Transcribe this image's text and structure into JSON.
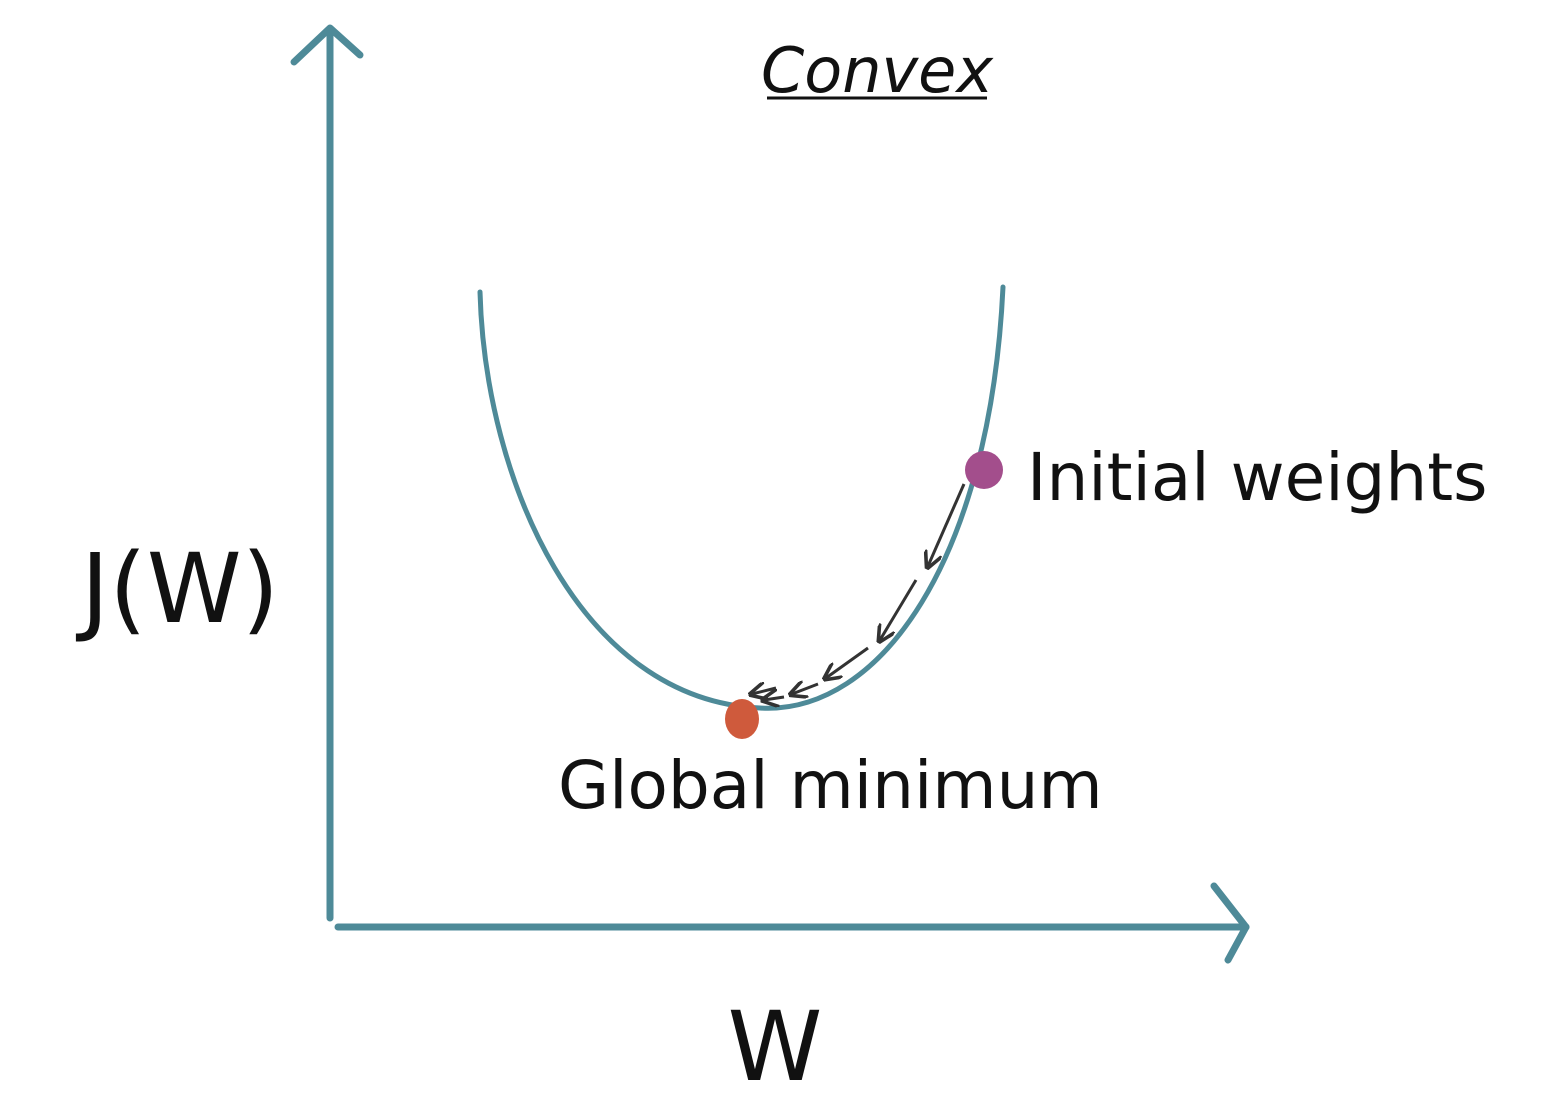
{
  "title": "Convex",
  "axes": {
    "y_label": "J(W)",
    "x_label": "W"
  },
  "annotations": {
    "start_point": "Initial weights",
    "end_point": "Global minimum"
  },
  "colors": {
    "axis": "#4e8a98",
    "curve": "#4e8a98",
    "start_point": "#a34e8c",
    "end_point": "#cf5a3c",
    "arrows": "#333333",
    "text": "#111111"
  },
  "steps": {
    "count": 6,
    "direction": "descent toward minimum"
  }
}
